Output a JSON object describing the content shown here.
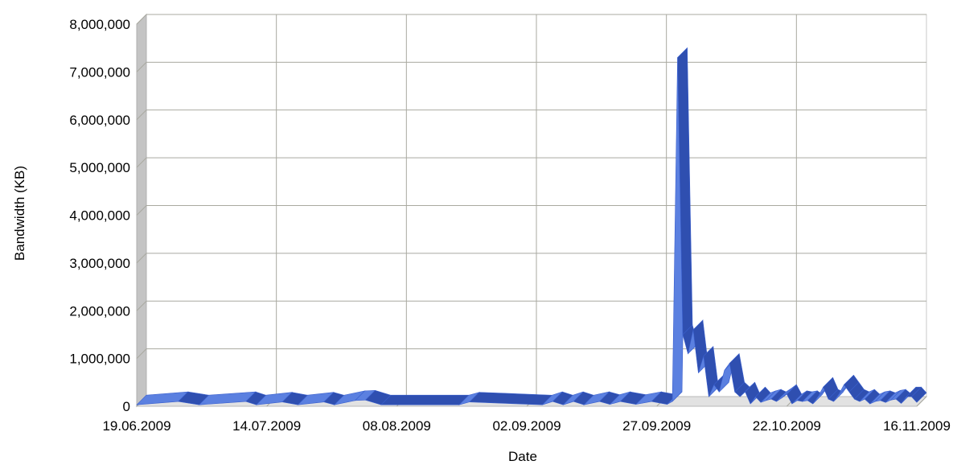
{
  "chart_data": {
    "type": "area",
    "title": "",
    "xlabel": "Date",
    "ylabel": "Bandwidth (KB)",
    "ylim": [
      0,
      8000000
    ],
    "y_ticks": [
      0,
      1000000,
      2000000,
      3000000,
      4000000,
      5000000,
      6000000,
      7000000,
      8000000
    ],
    "y_tick_labels": [
      "0",
      "1,000,000",
      "2,000,000",
      "3,000,000",
      "4,000,000",
      "5,000,000",
      "6,000,000",
      "7,000,000",
      "8,000,000"
    ],
    "xlim": [
      "19.06.2009",
      "16.11.2009"
    ],
    "x_tick_labels": [
      "19.06.2009",
      "14.07.2009",
      "08.08.2009",
      "02.09.2009",
      "27.09.2009",
      "22.10.2009",
      "16.11.2009"
    ],
    "grid": true,
    "style": "3d ribbon",
    "series": [
      {
        "color": "#3a5fcd",
        "x": [
          "19.06.2009",
          "27.06.2009",
          "01.07.2009",
          "10.07.2009",
          "12.07.2009",
          "17.07.2009",
          "20.07.2009",
          "25.07.2009",
          "27.07.2009",
          "31.07.2009",
          "02.08.2009",
          "05.08.2009",
          "20.08.2009",
          "22.08.2009",
          "05.09.2009",
          "07.09.2009",
          "09.09.2009",
          "11.09.2009",
          "13.09.2009",
          "16.09.2009",
          "18.09.2009",
          "20.09.2009",
          "23.09.2009",
          "26.09.2009",
          "29.09.2009",
          "30.09.2009",
          "01.10.2009",
          "02.10.2009",
          "03.10.2009",
          "04.10.2009",
          "05.10.2009",
          "06.10.2009",
          "07.10.2009",
          "08.10.2009",
          "09.10.2009",
          "10.10.2009",
          "11.10.2009",
          "12.10.2009",
          "13.10.2009",
          "14.10.2009",
          "15.10.2009",
          "16.10.2009",
          "17.10.2009",
          "18.10.2009",
          "19.10.2009",
          "20.10.2009",
          "21.10.2009",
          "22.10.2009",
          "23.10.2009",
          "24.10.2009",
          "25.10.2009",
          "26.10.2009",
          "27.10.2009",
          "28.10.2009",
          "29.10.2009",
          "30.10.2009",
          "31.10.2009",
          "01.11.2009",
          "02.11.2009",
          "03.11.2009",
          "04.11.2009",
          "05.11.2009",
          "06.11.2009",
          "07.11.2009",
          "08.11.2009",
          "09.11.2009",
          "10.11.2009",
          "11.11.2009",
          "12.11.2009",
          "13.11.2009",
          "14.11.2009",
          "15.11.2009",
          "16.11.2009"
        ],
        "values": [
          30000,
          100000,
          30000,
          100000,
          30000,
          90000,
          30000,
          90000,
          30000,
          120000,
          130000,
          30000,
          30000,
          90000,
          30000,
          100000,
          30000,
          100000,
          30000,
          100000,
          40000,
          100000,
          40000,
          100000,
          40000,
          100000,
          7300000,
          1500000,
          1100000,
          1600000,
          700000,
          1050000,
          200000,
          450000,
          300000,
          750000,
          900000,
          300000,
          200000,
          300000,
          50000,
          200000,
          80000,
          120000,
          150000,
          100000,
          170000,
          250000,
          50000,
          120000,
          100000,
          120000,
          50000,
          200000,
          400000,
          150000,
          100000,
          250000,
          450000,
          300000,
          150000,
          100000,
          150000,
          50000,
          100000,
          120000,
          80000,
          130000,
          150000,
          60000,
          200000,
          200000,
          80000
        ]
      }
    ]
  }
}
